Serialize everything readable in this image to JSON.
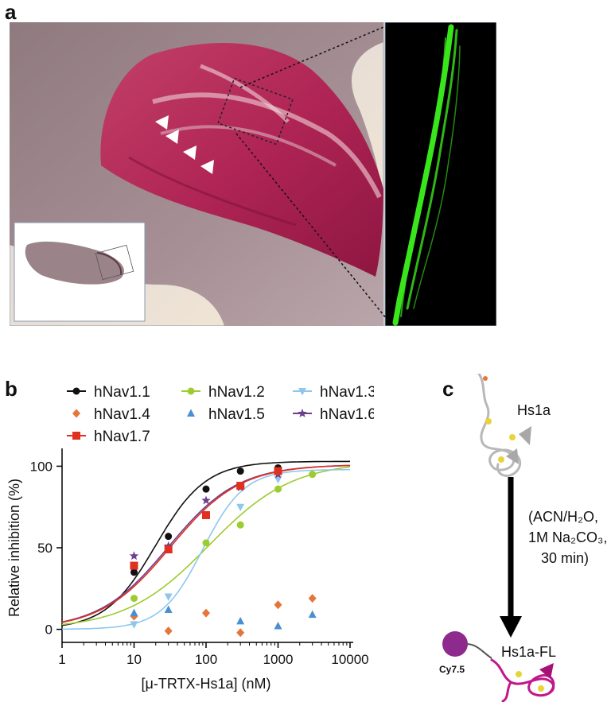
{
  "figure": {
    "panel_a_label": "a",
    "panel_b_label": "b",
    "panel_c_label": "c"
  },
  "panel_c": {
    "top_label": "Hs1a",
    "conditions": [
      "(ACN/H₂O,",
      "1M Na₂CO₃,",
      "30 min)"
    ],
    "dye_label": "Cy7.5",
    "bottom_label": "Hs1a-FL",
    "dye_color": "#8e2a8e",
    "peptide_color_top": "#b8b8b8",
    "peptide_color_bottom": "#c0178a"
  },
  "chart_data": {
    "type": "scatter",
    "xlabel": "[μ-TRTX-Hs1a] (nM)",
    "ylabel": "Relative inhibition (%)",
    "xscale": "log",
    "xlim": [
      1,
      10000
    ],
    "ylim": [
      -8,
      108
    ],
    "xticks": [
      1,
      10,
      100,
      1000,
      10000
    ],
    "xtick_labels": [
      "1",
      "10",
      "100",
      "1000",
      "10000"
    ],
    "yticks": [
      0,
      50,
      100
    ],
    "ytick_labels": [
      "0",
      "50",
      "100"
    ],
    "legend_position": "top",
    "series": [
      {
        "name": "hNav1.1",
        "color": "#111111",
        "marker": "circle",
        "x": [
          10,
          30,
          100,
          300,
          1000
        ],
        "y": [
          35,
          57,
          86,
          97,
          99
        ],
        "fit": {
          "ic50": 20,
          "hill": 1.25,
          "top": 103
        }
      },
      {
        "name": "hNav1.2",
        "color": "#9ccc2e",
        "marker": "circle",
        "x": [
          10,
          30,
          100,
          300,
          1000,
          3000
        ],
        "y": [
          19,
          49,
          53,
          64,
          86,
          95
        ],
        "fit": {
          "ic50": 110,
          "hill": 0.75,
          "top": 103
        }
      },
      {
        "name": "hNav1.3",
        "color": "#8fc7ec",
        "marker": "triangle-down",
        "x": [
          10,
          30,
          300,
          1000
        ],
        "y": [
          3,
          20,
          75,
          92
        ],
        "fit": {
          "ic50": 90,
          "hill": 1.5,
          "top": 98
        }
      },
      {
        "name": "hNav1.4",
        "color": "#e5753a",
        "marker": "diamond",
        "x": [
          10,
          30,
          100,
          300,
          1000,
          3000
        ],
        "y": [
          8,
          -1,
          10,
          -2,
          15,
          19
        ]
      },
      {
        "name": "hNav1.5",
        "color": "#4a8fd0",
        "marker": "triangle-up",
        "x": [
          10,
          30,
          300,
          1000,
          3000
        ],
        "y": [
          10,
          12,
          5,
          2,
          9
        ]
      },
      {
        "name": "hNav1.6",
        "color": "#6e3f8f",
        "marker": "star",
        "x": [
          10,
          30,
          100,
          300,
          1000
        ],
        "y": [
          45,
          51,
          79,
          87,
          95
        ],
        "fit": {
          "ic50": 30,
          "hill": 0.9,
          "top": 101
        }
      },
      {
        "name": "hNav1.7",
        "color": "#e03020",
        "marker": "square",
        "x": [
          10,
          30,
          100,
          300,
          1000
        ],
        "y": [
          39,
          49,
          70,
          88,
          97
        ],
        "fit": {
          "ic50": 32,
          "hill": 0.9,
          "top": 101
        }
      }
    ]
  }
}
